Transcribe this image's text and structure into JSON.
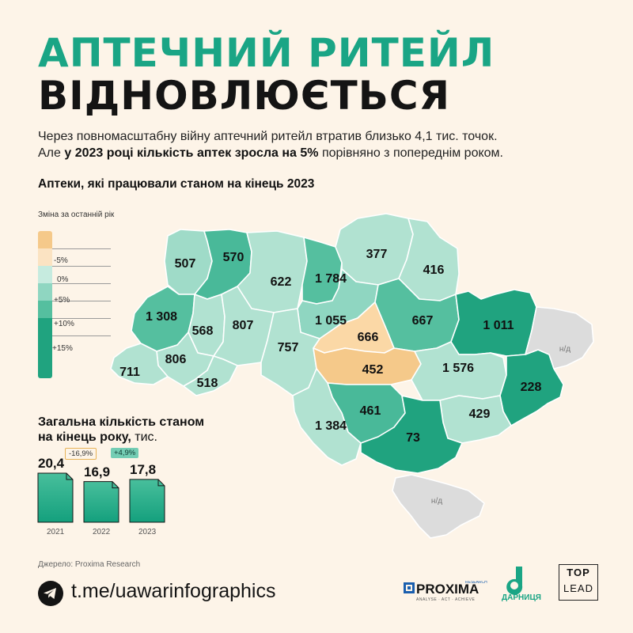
{
  "title": {
    "line1": "АПТЕЧНИЙ РИТЕЙЛ",
    "line2": "ВІДНОВЛЮЄТЬСЯ"
  },
  "intro": {
    "line1": "Через повномасштабну війну аптечний ритейл втратив близько 4,1 тис. точок.",
    "line2_a": "Але ",
    "line2_bold": "у 2023 році кількість аптек зросла на 5%",
    "line2_b": " порівняно з попереднім роком."
  },
  "map_title": "Аптеки, які працювали станом на кінець 2023",
  "legend": {
    "title": "Зміна за останній рік",
    "labels": [
      "-5%",
      "0%",
      "+5%",
      "+10%",
      "+15%"
    ],
    "colors": [
      "#f5c98a",
      "#fbe3c2",
      "#c6ebdf",
      "#8fd6c1",
      "#55bf9f",
      "#20a37f"
    ]
  },
  "regions": [
    {
      "name": "volyn",
      "value": "507",
      "color": "#9fdbc8"
    },
    {
      "name": "rivne",
      "value": "570",
      "color": "#49b999"
    },
    {
      "name": "zhytomyr",
      "value": "622",
      "color": "#b1e2d1"
    },
    {
      "name": "kyiv",
      "value": "1 784",
      "color": "#55bf9f"
    },
    {
      "name": "chernihiv",
      "value": "377",
      "color": "#b1e2d1"
    },
    {
      "name": "sumy",
      "value": "416",
      "color": "#b1e2d1"
    },
    {
      "name": "lviv",
      "value": "1 308",
      "color": "#55bf9f"
    },
    {
      "name": "ternopil",
      "value": "568",
      "color": "#b1e2d1"
    },
    {
      "name": "khmelnytskyi",
      "value": "807",
      "color": "#b1e2d1"
    },
    {
      "name": "kyiv-oblast",
      "value": "1 055",
      "color": "#8fd6c1"
    },
    {
      "name": "poltava",
      "value": "667",
      "color": "#55bf9f"
    },
    {
      "name": "kharkiv",
      "value": "1 011",
      "color": "#20a37f"
    },
    {
      "name": "cherkasy",
      "value": "666",
      "color": "#fbd8a6"
    },
    {
      "name": "vinnytsia",
      "value": "757",
      "color": "#b1e2d1"
    },
    {
      "name": "ivano-frankivsk",
      "value": "806",
      "color": "#b1e2d1"
    },
    {
      "name": "zakarpattia",
      "value": "711",
      "color": "#b1e2d1"
    },
    {
      "name": "chernivtsi",
      "value": "518",
      "color": "#b1e2d1"
    },
    {
      "name": "kirovohrad",
      "value": "452",
      "color": "#f5c98a"
    },
    {
      "name": "dnipro",
      "value": "1 576",
      "color": "#b1e2d1"
    },
    {
      "name": "luhansk",
      "value": "228",
      "color": "#20a37f"
    },
    {
      "name": "mykolaiv",
      "value": "461",
      "color": "#49b999"
    },
    {
      "name": "odesa",
      "value": "1 384",
      "color": "#b1e2d1"
    },
    {
      "name": "zaporizhzhia",
      "value": "429",
      "color": "#b1e2d1"
    },
    {
      "name": "kherson",
      "value": "73",
      "color": "#20a37f"
    },
    {
      "name": "donetsk",
      "value": "н/д",
      "color": "#dcdcdc"
    },
    {
      "name": "crimea",
      "value": "н/д",
      "color": "#dcdcdc"
    }
  ],
  "totals": {
    "title_line1": "Загальна кількість станом",
    "title_line2": "на кінець року,",
    "unit": " тис.",
    "years": [
      "2021",
      "2022",
      "2023"
    ],
    "values": [
      20.4,
      16.9,
      17.8
    ],
    "value_labels": [
      "20,4",
      "16,9",
      "17,8"
    ],
    "changes": [
      "-16,9%",
      "+4,9%"
    ]
  },
  "source": "Джерело: Proxima Research",
  "footer": {
    "link": "t.me/uawarinfographics",
    "logos": {
      "proxima": "PROXIMA",
      "proxima_sub": "RESEARCH",
      "proxima_tag": "ANALYSE · ACT · ACHIEVE",
      "darnytsia": "ДАРНИЦЯ",
      "top": "TOP",
      "lead": "LEAD"
    }
  }
}
